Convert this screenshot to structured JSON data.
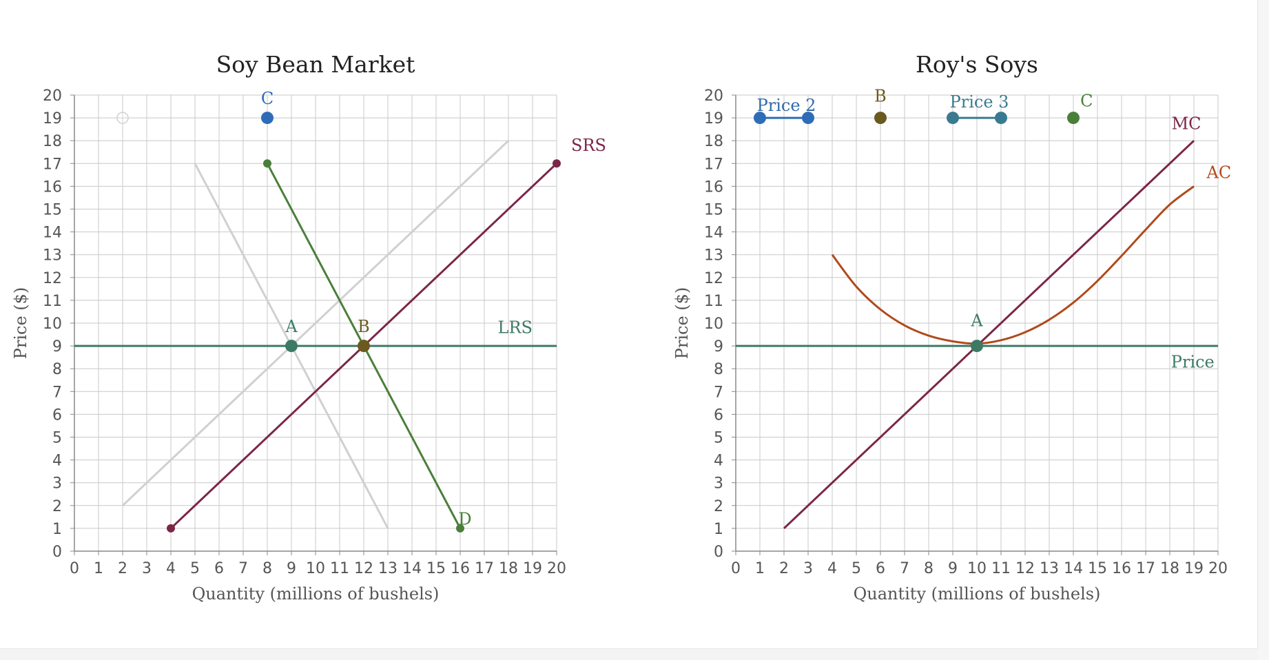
{
  "colors": {
    "grid": "#c8c8c8",
    "axis": "#888888",
    "ghost": "#d0d0d0",
    "srs_mc": "#7b2648",
    "demand_green": "#4a7f3a",
    "price_teal": "#3c7a66",
    "point_b_olive": "#6b5a1e",
    "blue": "#2e6cb8",
    "teal_blue": "#3a7a90",
    "ac_orange": "#b04a1c",
    "label_blue": "#2f6aa8"
  },
  "chart_data": [
    {
      "type": "line",
      "title": "Soy Bean Market",
      "xlabel": "Quantity (millions of bushels)",
      "ylabel": "Price ($)",
      "xlim": [
        0,
        20
      ],
      "ylim": [
        0,
        20
      ],
      "xticks": [
        "0",
        "1",
        "2",
        "3",
        "4",
        "5",
        "6",
        "7",
        "8",
        "9",
        "10",
        "11",
        "12",
        "13",
        "14",
        "15",
        "16",
        "17",
        "18",
        "19",
        "20"
      ],
      "yticks": [
        "0",
        "1",
        "2",
        "3",
        "4",
        "5",
        "6",
        "7",
        "8",
        "9",
        "10",
        "11",
        "12",
        "13",
        "14",
        "15",
        "16",
        "17",
        "18",
        "19",
        "20"
      ],
      "grid": true,
      "series": [
        {
          "key": "ghost_supply",
          "color": "ghost",
          "points": [
            [
              2,
              2
            ],
            [
              18,
              18
            ]
          ]
        },
        {
          "key": "ghost_demand",
          "color": "ghost",
          "points": [
            [
              5,
              17
            ],
            [
              13,
              1
            ]
          ]
        },
        {
          "name": "LRS",
          "key": "lrs",
          "color": "price_teal",
          "points": [
            [
              0,
              9
            ],
            [
              20,
              9
            ]
          ],
          "label_at": [
            19,
            9.8
          ],
          "label_anchor": "end"
        },
        {
          "name": "SRS",
          "key": "srs",
          "color": "srs_mc",
          "points": [
            [
              4,
              1
            ],
            [
              20,
              17
            ]
          ],
          "endpoints": true,
          "label_at": [
            20.6,
            17.8
          ],
          "label_anchor": "start"
        },
        {
          "name": "D",
          "key": "demand",
          "color": "demand_green",
          "points": [
            [
              8,
              17
            ],
            [
              16,
              1
            ]
          ],
          "endpoints": true,
          "label_at": [
            16.2,
            1.4
          ],
          "label_anchor": "middle"
        }
      ],
      "points": [
        {
          "label": "A",
          "x": 9,
          "y": 9,
          "color": "price_teal",
          "r": 9,
          "label_dy": -0.85
        },
        {
          "label": "B",
          "x": 12,
          "y": 9,
          "color": "point_b_olive",
          "r": 9,
          "label_dy": -0.85
        },
        {
          "label": "C",
          "x": 8,
          "y": 19,
          "color": "blue",
          "r": 9,
          "label_dy": -0.85
        },
        {
          "label": "",
          "x": 2,
          "y": 19,
          "color": "ghost",
          "r": 8,
          "hollow": true
        }
      ]
    },
    {
      "type": "line",
      "title": "Roy's Soys",
      "xlabel": "Quantity (millions of bushels)",
      "ylabel": "Price ($)",
      "xlim": [
        0,
        20
      ],
      "ylim": [
        0,
        20
      ],
      "xticks": [
        "0",
        "1",
        "2",
        "3",
        "4",
        "5",
        "6",
        "7",
        "8",
        "9",
        "10",
        "11",
        "12",
        "13",
        "14",
        "15",
        "16",
        "17",
        "18",
        "19",
        "20"
      ],
      "yticks": [
        "0",
        "1",
        "2",
        "3",
        "4",
        "5",
        "6",
        "7",
        "8",
        "9",
        "10",
        "11",
        "12",
        "13",
        "14",
        "15",
        "16",
        "17",
        "18",
        "19",
        "20"
      ],
      "grid": true,
      "series": [
        {
          "name": "Price",
          "key": "price",
          "color": "price_teal",
          "points": [
            [
              0,
              9
            ],
            [
              20,
              9
            ]
          ],
          "label_at": [
            19.85,
            8.3
          ],
          "label_anchor": "end"
        },
        {
          "name": "MC",
          "key": "mc",
          "color": "srs_mc",
          "points": [
            [
              2,
              1
            ],
            [
              19,
              18
            ]
          ],
          "label_at": [
            19.3,
            18.75
          ],
          "label_anchor": "end"
        },
        {
          "name": "AC",
          "key": "ac",
          "color": "ac_orange",
          "curve": "ac",
          "points": [
            [
              4,
              13
            ],
            [
              5,
              11.6
            ],
            [
              6,
              10.6
            ],
            [
              7,
              9.9
            ],
            [
              8,
              9.45
            ],
            [
              9,
              9.2
            ],
            [
              10,
              9.1
            ],
            [
              11,
              9.25
            ],
            [
              12,
              9.6
            ],
            [
              13,
              10.15
            ],
            [
              14,
              10.9
            ],
            [
              15,
              11.85
            ],
            [
              16,
              12.95
            ],
            [
              17,
              14.1
            ],
            [
              18,
              15.2
            ],
            [
              19,
              16
            ]
          ],
          "label_at": [
            20.55,
            16.6
          ],
          "label_anchor": "end"
        },
        {
          "name": "Price 2",
          "key": "price2",
          "color": "blue",
          "points": [
            [
              1,
              19
            ],
            [
              3,
              19
            ]
          ],
          "endpoints": true,
          "endpoint_r": 9,
          "label_at": [
            2.1,
            19.55
          ],
          "label_anchor": "middle",
          "label_color": "label_blue"
        },
        {
          "name": "Price 3",
          "key": "price3",
          "color": "teal_blue",
          "points": [
            [
              9,
              19
            ],
            [
              11,
              19
            ]
          ],
          "endpoints": true,
          "endpoint_r": 9,
          "label_at": [
            10.1,
            19.7
          ],
          "label_anchor": "middle",
          "label_color": "teal_blue"
        }
      ],
      "points": [
        {
          "label": "A",
          "x": 10,
          "y": 9,
          "color": "price_teal",
          "r": 9,
          "label_dy": -1.1
        },
        {
          "label": "B",
          "x": 6,
          "y": 19,
          "color": "point_b_olive",
          "r": 9,
          "label_dy": -0.95
        },
        {
          "label": "C",
          "x": 14,
          "y": 19,
          "color": "demand_green",
          "r": 9,
          "label_dy": -0.75,
          "label_dx": 0.55
        }
      ]
    }
  ]
}
